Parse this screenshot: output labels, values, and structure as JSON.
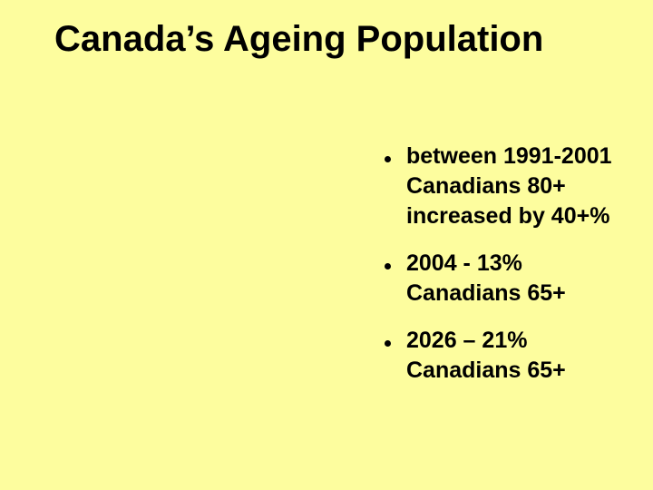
{
  "slide": {
    "title": "Canada’s Ageing Population",
    "bullets": [
      {
        "lines": [
          "between 1991-2001",
          "Canadians 80+",
          "increased by 40+%"
        ]
      },
      {
        "lines": [
          "2004 - 13%",
          "Canadians 65+"
        ]
      },
      {
        "lines": [
          "2026 – 21%",
          "Canadians 65+"
        ]
      }
    ],
    "colors": {
      "background": "#FDFD9E",
      "text": "#000000",
      "bullet_dot": "#000000"
    }
  }
}
